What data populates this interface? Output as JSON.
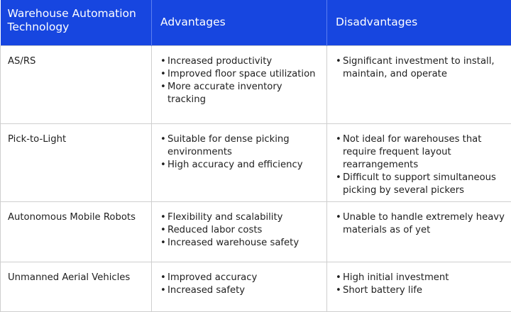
{
  "header": {
    "technology": "Warehouse Automation Technology",
    "advantages": "Advantages",
    "disadvantages": "Disadvantages"
  },
  "rows": [
    {
      "technology": "AS/RS",
      "advantages": [
        "Increased productivity",
        "Improved floor space utilization",
        "More accurate inventory tracking"
      ],
      "disadvantages": [
        "Significant investment to install, maintain, and operate"
      ]
    },
    {
      "technology": "Pick-to-Light",
      "advantages": [
        "Suitable for dense picking environments",
        "High accuracy and efficiency"
      ],
      "disadvantages": [
        "Not ideal for warehouses that require frequent layout rearrangements",
        "Difficult to support simultaneous picking by several pickers"
      ]
    },
    {
      "technology": "Autonomous Mobile Robots",
      "advantages": [
        "Flexibility and scalability",
        "Reduced labor costs",
        "Increased warehouse safety"
      ],
      "disadvantages": [
        "Unable to handle extremely heavy materials as of yet"
      ]
    },
    {
      "technology": "Unmanned Aerial Vehicles",
      "advantages": [
        "Improved accuracy",
        "Increased safety"
      ],
      "disadvantages": [
        "High initial investment",
        "Short battery life"
      ]
    }
  ]
}
